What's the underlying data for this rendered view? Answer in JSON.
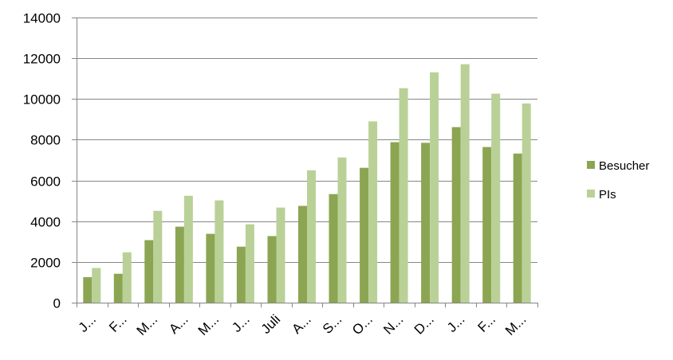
{
  "chart_data": {
    "type": "bar",
    "categories": [
      "J...",
      "F...",
      "M...",
      "A...",
      "M...",
      "J...",
      "Juli",
      "A...",
      "S...",
      "O...",
      "N...",
      "D...",
      "J...",
      "F...",
      "M..."
    ],
    "series": [
      {
        "name": "Besucher",
        "color": "#8ca552",
        "values": [
          1250,
          1420,
          3070,
          3730,
          3380,
          2750,
          3270,
          4750,
          5330,
          6620,
          7880,
          7850,
          8620,
          7640,
          7320
        ]
      },
      {
        "name": "PIs",
        "color": "#b9d197",
        "values": [
          1700,
          2470,
          4510,
          5250,
          5020,
          3850,
          4670,
          6500,
          7130,
          8900,
          10530,
          11310,
          11710,
          10260,
          9780
        ]
      }
    ],
    "ylim": [
      0,
      14000
    ],
    "yticks": [
      "0",
      "2000",
      "4000",
      "6000",
      "8000",
      "10000",
      "12000",
      "14000"
    ],
    "grid": true,
    "legend_position": "right",
    "title": "",
    "xlabel": "",
    "ylabel": ""
  }
}
